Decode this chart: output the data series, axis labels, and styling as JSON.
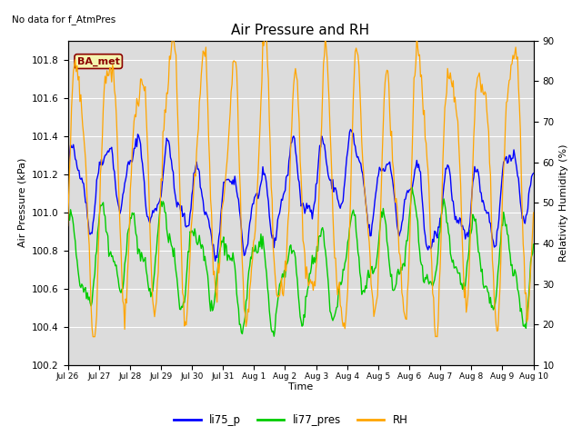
{
  "title": "Air Pressure and RH",
  "top_left_text": "No data for f_AtmPres",
  "box_label": "BA_met",
  "xlabel": "Time",
  "ylabel_left": "Air Pressure (kPa)",
  "ylabel_right": "Relativity Humidity (%)",
  "ylim_left": [
    100.2,
    101.9
  ],
  "ylim_right": [
    10,
    90
  ],
  "yticks_left": [
    100.2,
    100.4,
    100.6,
    100.8,
    101.0,
    101.2,
    101.4,
    101.6,
    101.8
  ],
  "yticks_right": [
    10,
    20,
    30,
    40,
    50,
    60,
    70,
    80,
    90
  ],
  "bg_color": "#dcdcdc",
  "line_color_li75": "#0000ff",
  "line_color_li77": "#00cc00",
  "line_color_RH": "#ffa500",
  "legend_labels": [
    "li75_p",
    "li77_pres",
    "RH"
  ],
  "tick_labels": [
    "Jul 26",
    "Jul 27",
    "Jul 28",
    "Jul 29",
    "Jul 30",
    "Jul 31",
    "Aug 1",
    "Aug 2",
    "Aug 3",
    "Aug 4",
    "Aug 5",
    "Aug 6",
    "Aug 7",
    "Aug 8",
    "Aug 9",
    "Aug 10"
  ],
  "n_points": 500,
  "figsize": [
    6.4,
    4.8
  ],
  "dpi": 100
}
